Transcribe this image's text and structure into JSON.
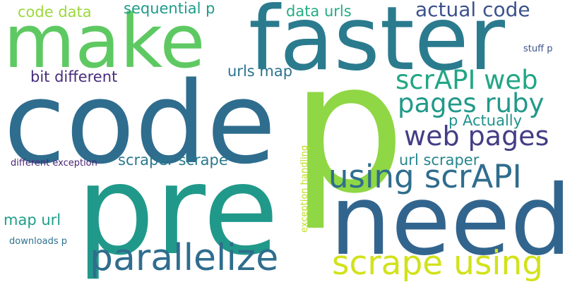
{
  "words": [
    {
      "text": "p",
      "color": "#8fd744"
    },
    {
      "text": "code",
      "color": "#2f6d8e"
    },
    {
      "text": "pre",
      "color": "#21998a"
    },
    {
      "text": "need",
      "color": "#32658e"
    },
    {
      "text": "make",
      "color": "#5ec962"
    },
    {
      "text": "faster",
      "color": "#2b7b8e"
    },
    {
      "text": "parallelize",
      "color": "#2f6d8e"
    },
    {
      "text": "scrape using",
      "color": "#d2e21b"
    },
    {
      "text": "using scrAPI",
      "color": "#2f6d8e"
    },
    {
      "text": "scrAPI web",
      "color": "#21a685"
    },
    {
      "text": "pages ruby",
      "color": "#21998a"
    },
    {
      "text": "web pages",
      "color": "#433e85"
    },
    {
      "text": "actual code",
      "color": "#3b528b"
    },
    {
      "text": "code data",
      "color": "#9bd93c"
    },
    {
      "text": "sequential p",
      "color": "#1e9b8a"
    },
    {
      "text": "data urls",
      "color": "#25ab82"
    },
    {
      "text": "bit different",
      "color": "#472d7b"
    },
    {
      "text": "urls map",
      "color": "#2c738e"
    },
    {
      "text": "p Actually",
      "color": "#21918c"
    },
    {
      "text": "scraper scrape",
      "color": "#2a788e"
    },
    {
      "text": "url scraper",
      "color": "#25858e"
    },
    {
      "text": "map url",
      "color": "#1f9e89"
    },
    {
      "text": "stuff p",
      "color": "#3b528b"
    },
    {
      "text": "different exception",
      "color": "#482475"
    },
    {
      "text": "exception handling",
      "color": "#c0df25"
    },
    {
      "text": "downloads p",
      "color": "#2c728e"
    }
  ]
}
